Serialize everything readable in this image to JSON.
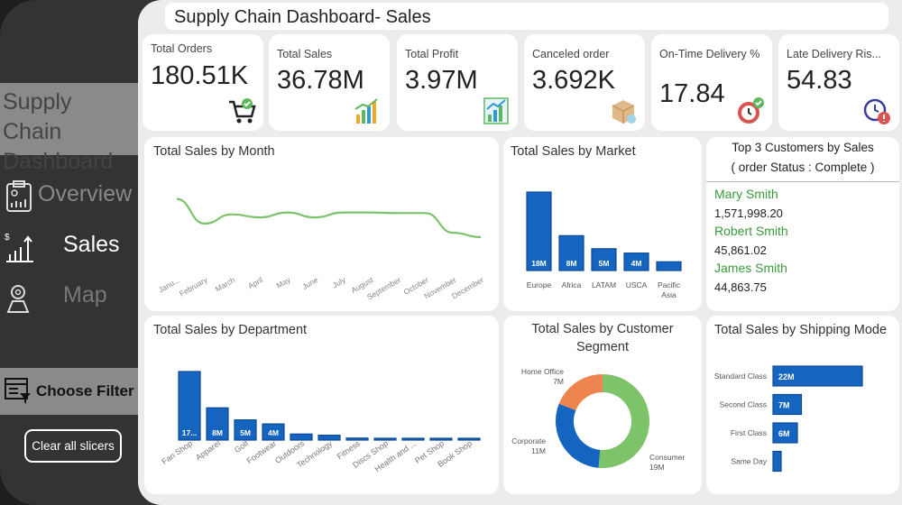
{
  "header": {
    "title": "Supply Chain Dashboard- Sales"
  },
  "sidebar": {
    "brand": "Supply Chain Dashboard",
    "nav": [
      {
        "label": "Overview",
        "icon": "report-icon"
      },
      {
        "label": "Sales",
        "icon": "sales-chart-icon",
        "active": true
      },
      {
        "label": "Map",
        "icon": "map-pin-icon"
      }
    ],
    "filter_label": "Choose Filter",
    "clear_label": "Clear all slicers"
  },
  "kpis": [
    {
      "label": "Total Orders",
      "value": "180.51K",
      "icon": "cart-icon"
    },
    {
      "label": "Total Sales",
      "value": "36.78M",
      "icon": "bar-chart-icon"
    },
    {
      "label": "Total Profit",
      "value": "3.97M",
      "icon": "growth-chart-icon"
    },
    {
      "label": "Canceled order",
      "value": "3.692K",
      "icon": "box-icon"
    },
    {
      "label": "On-Time Delivery %",
      "value": "17.84",
      "icon": "clock-check-icon"
    },
    {
      "label": "Late Delivery Ris...",
      "value": "54.83",
      "icon": "clock-alert-icon"
    }
  ],
  "top_customers": {
    "title": "Top 3 Customers by Sales",
    "subtitle": "( order Status : Complete )",
    "items": [
      {
        "name": "Mary Smith",
        "value": "1,571,998.20"
      },
      {
        "name": "Robert Smith",
        "value": "45,861.02"
      },
      {
        "name": "James Smith",
        "value": "44,863.75"
      }
    ]
  },
  "colors": {
    "bar": "#1565c0",
    "line": "#7cc36a",
    "consumer": "#7cc36a",
    "corporate": "#1565c0",
    "home_office": "#ee8450"
  },
  "chart_data": [
    {
      "type": "line",
      "title": "Total Sales by Month",
      "categories": [
        "Janu...",
        "February",
        "March",
        "April",
        "May",
        "June",
        "July",
        "August",
        "September",
        "October",
        "November",
        "December"
      ],
      "values": [
        3.4,
        3.0,
        3.15,
        3.1,
        3.18,
        3.1,
        3.18,
        3.18,
        3.17,
        3.17,
        2.85,
        2.78
      ],
      "grid": false
    },
    {
      "type": "bar",
      "title": "Total Sales by Market",
      "categories": [
        "Europe",
        "Africa",
        "LATAM",
        "USCA",
        "Pacific Asia"
      ],
      "values": [
        18,
        8,
        5,
        4,
        2
      ],
      "labels": [
        "18M",
        "8M",
        "5M",
        "4M",
        ""
      ]
    },
    {
      "type": "bar",
      "title": "Total Sales by Department",
      "categories": [
        "Fan Shop",
        "Apparel",
        "Golf",
        "Footwear",
        "Outdoors",
        "Technology",
        "Fitness",
        "Discs Shop",
        "Health and ...",
        "Pet Shop",
        "Book Shop"
      ],
      "values": [
        17,
        8,
        5,
        4,
        1.5,
        1.2,
        0.5,
        0.3,
        0.2,
        0.15,
        0.1
      ],
      "labels": [
        "17...",
        "8M",
        "5M",
        "4M",
        "",
        "",
        "",
        "",
        "",
        "",
        ""
      ]
    },
    {
      "type": "pie",
      "title": "Total Sales by Customer Segment",
      "categories": [
        "Consumer",
        "Corporate",
        "Home Office"
      ],
      "values": [
        19,
        11,
        7
      ],
      "labels": [
        "19M",
        "11M",
        "7M"
      ]
    },
    {
      "type": "bar",
      "orientation": "horizontal",
      "title": "Total Sales by Shipping Mode",
      "categories": [
        "Standard Class",
        "Second Class",
        "First Class",
        "Same Day"
      ],
      "values": [
        22,
        7,
        6,
        2
      ],
      "labels": [
        "22M",
        "7M",
        "6M",
        ""
      ]
    }
  ]
}
